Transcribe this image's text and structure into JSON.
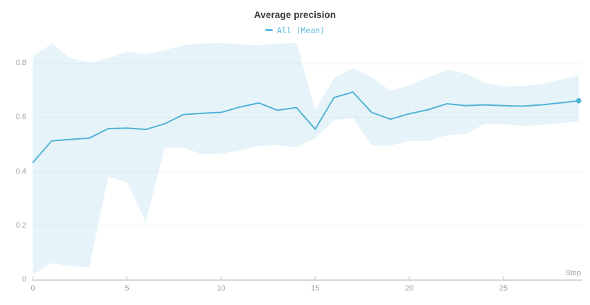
{
  "panel": {
    "title": "Average precision",
    "legend": [
      {
        "label": "All (Mean)",
        "color": "#5cbcdf"
      }
    ]
  },
  "axes": {
    "x": {
      "label": "Step",
      "tick_labels": [
        "0",
        "5",
        "10",
        "15",
        "20",
        "25"
      ],
      "tick_values": [
        0,
        5,
        10,
        15,
        20,
        25
      ]
    },
    "y": {
      "tick_labels": [
        "0",
        "0.2",
        "0.4",
        "0.6",
        "0.8"
      ],
      "tick_values": [
        0,
        0.2,
        0.4,
        0.6,
        0.8
      ]
    }
  },
  "colors": {
    "line": "#4fb2d6",
    "band": "#50b2d6",
    "band_opacity": 0.14,
    "gridline": "#f0f1f2",
    "axis": "#d5d8da",
    "tick_text": "#9aa0a5",
    "title_text": "#333a3f",
    "end_dot": "#4fb2d6"
  },
  "chart_data": {
    "type": "line",
    "title": "Average precision",
    "xlabel": "Step",
    "ylabel": "",
    "xlim": [
      0,
      29.6
    ],
    "ylim": [
      0,
      0.895
    ],
    "grid": "horizontal",
    "legend_position": "top-center",
    "x": [
      0,
      1,
      2,
      3,
      4,
      5,
      6,
      7,
      8,
      9,
      10,
      11,
      12,
      13,
      14,
      15,
      16,
      17,
      18,
      19,
      20,
      21,
      22,
      23,
      24,
      25,
      26,
      27,
      28,
      29
    ],
    "series": [
      {
        "name": "All (Mean)",
        "values": [
          0.435,
          0.515,
          0.52,
          0.525,
          0.56,
          0.562,
          0.557,
          0.578,
          0.612,
          0.617,
          0.62,
          0.64,
          0.655,
          0.628,
          0.638,
          0.558,
          0.675,
          0.695,
          0.62,
          0.595,
          0.615,
          0.63,
          0.652,
          0.645,
          0.648,
          0.645,
          0.643,
          0.648,
          0.655,
          0.663
        ],
        "end_marker": true
      }
    ],
    "band": {
      "name": "min-max range",
      "upper": [
        0.825,
        0.875,
        0.82,
        0.805,
        0.82,
        0.845,
        0.835,
        0.85,
        0.868,
        0.875,
        0.877,
        0.872,
        0.868,
        0.875,
        0.877,
        0.63,
        0.746,
        0.784,
        0.75,
        0.7,
        0.72,
        0.75,
        0.778,
        0.764,
        0.73,
        0.716,
        0.718,
        0.724,
        0.741,
        0.756
      ],
      "lower": [
        0.02,
        0.063,
        0.051,
        0.048,
        0.382,
        0.362,
        0.215,
        0.488,
        0.49,
        0.465,
        0.467,
        0.48,
        0.496,
        0.499,
        0.49,
        0.525,
        0.59,
        0.6,
        0.497,
        0.497,
        0.514,
        0.514,
        0.536,
        0.54,
        0.578,
        0.577,
        0.57,
        0.573,
        0.58,
        0.587
      ]
    }
  }
}
